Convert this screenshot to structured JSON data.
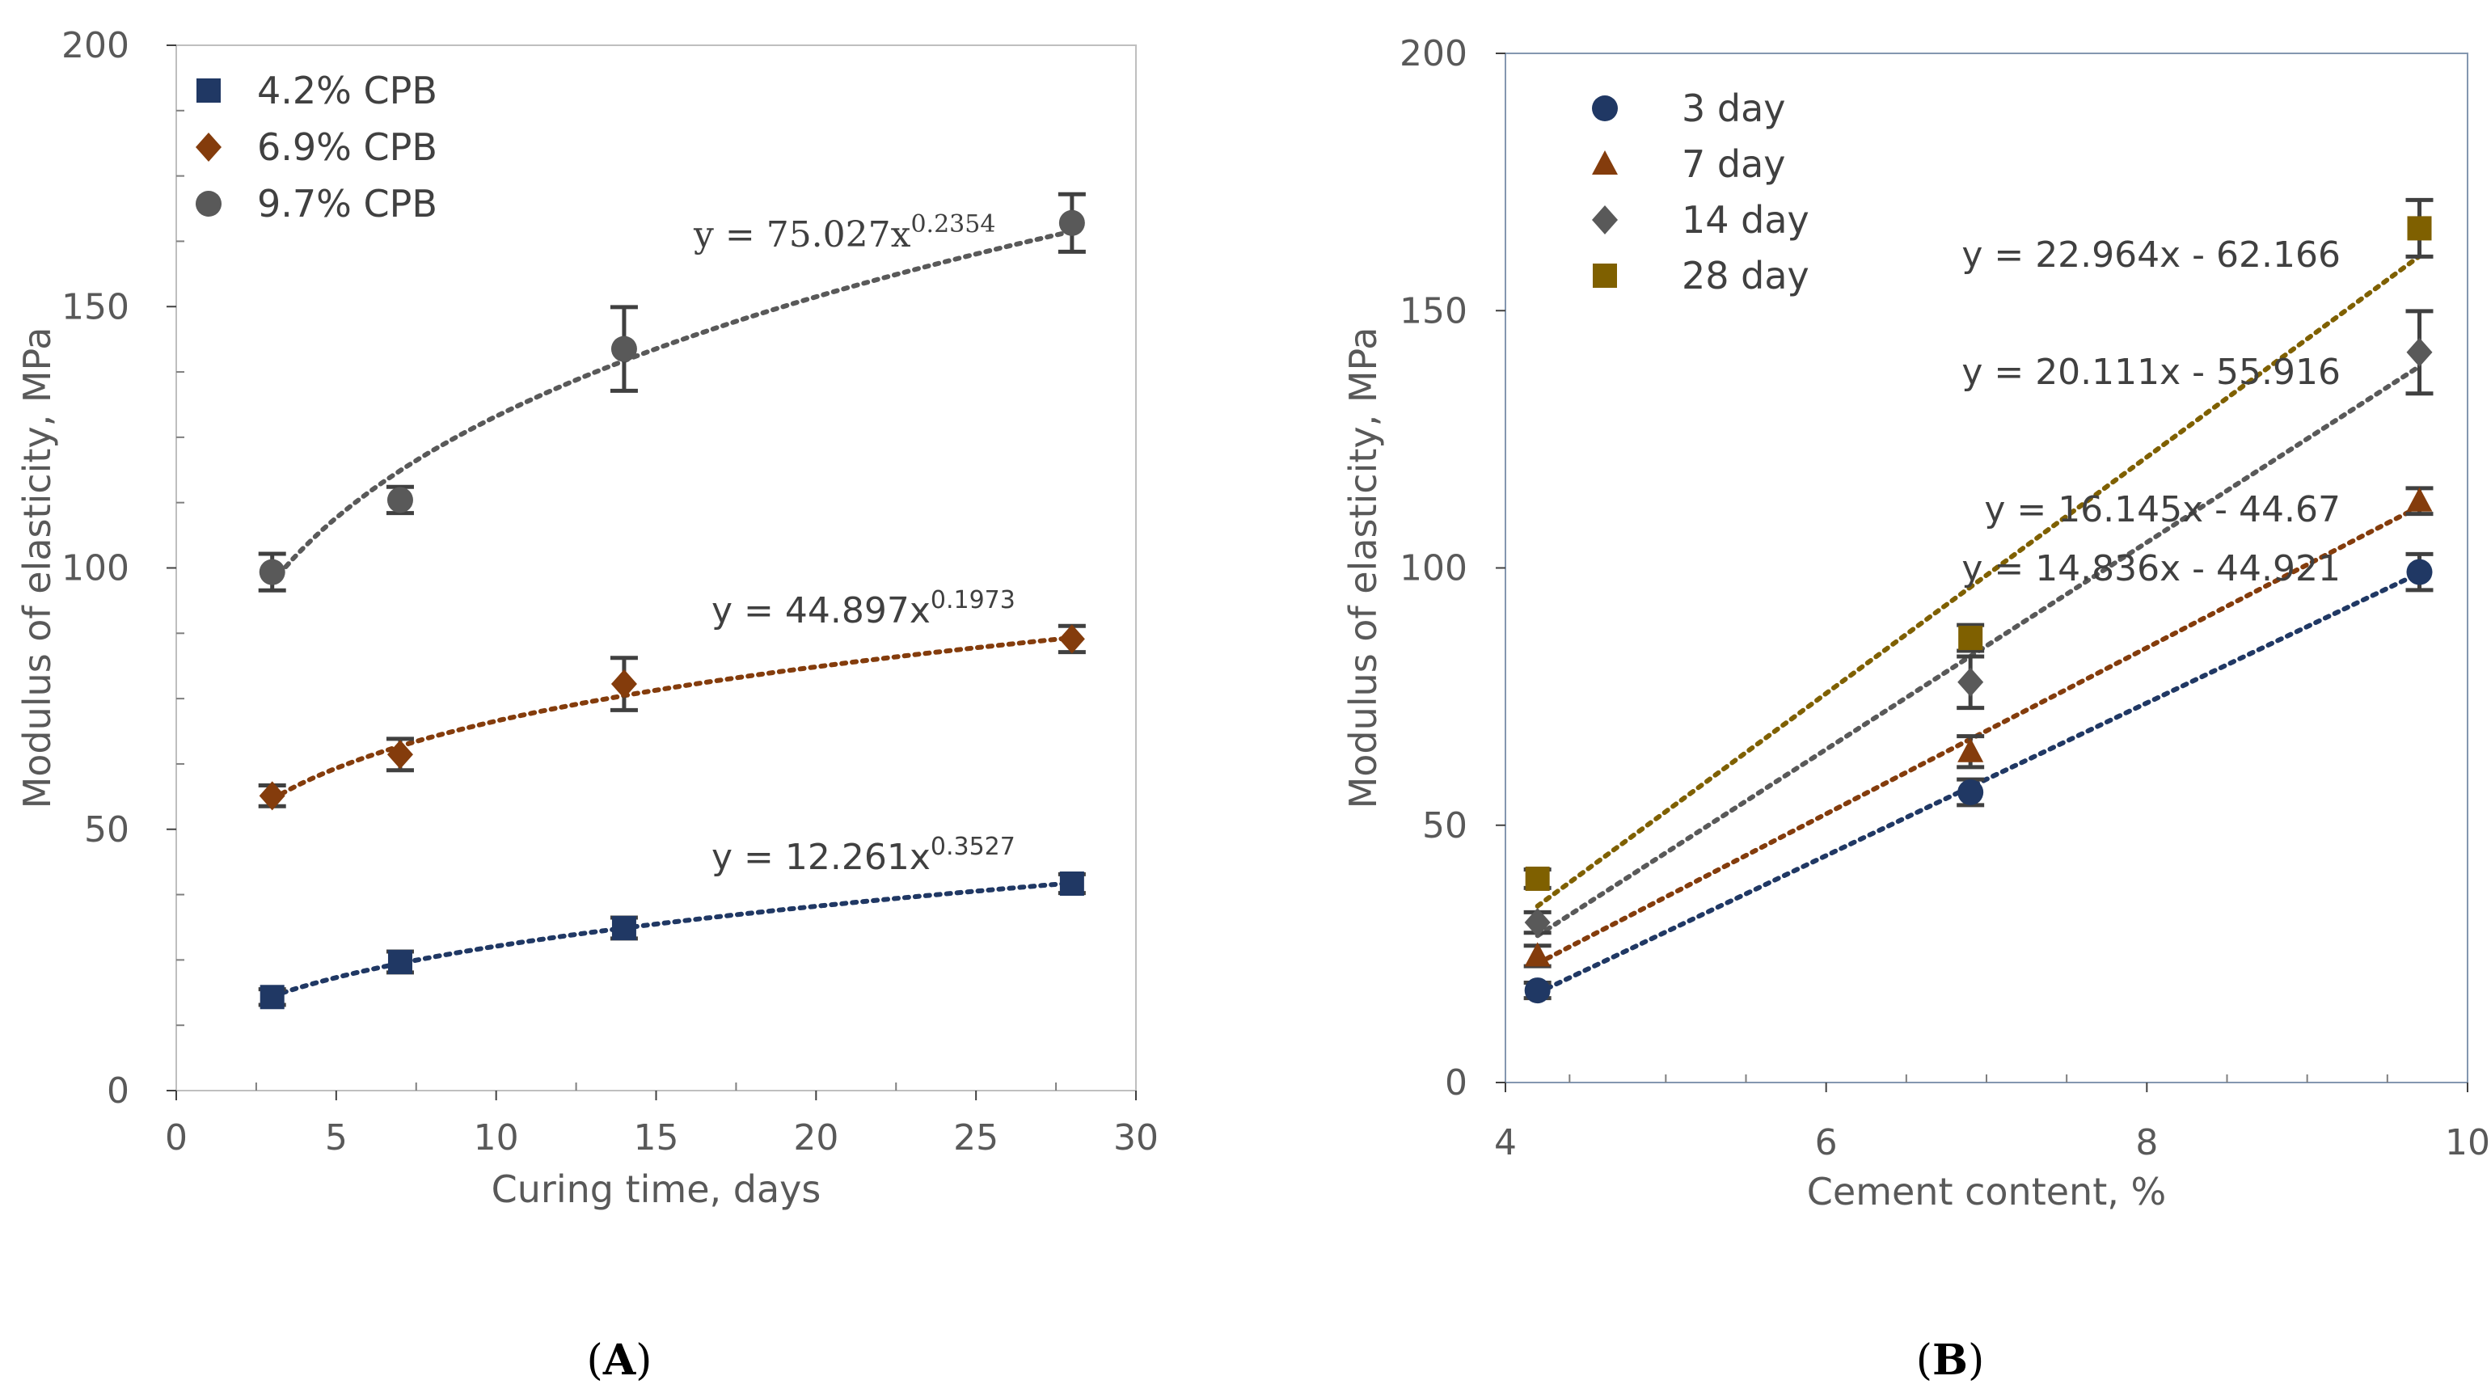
{
  "chart_data": [
    {
      "type": "scatter",
      "panel_label": "A",
      "xlabel": "Curing time, days",
      "ylabel": "Modulus of elasticity, MPa",
      "xlim": [
        0,
        30
      ],
      "ylim": [
        0,
        200
      ],
      "xticks": [
        "0",
        "5",
        "10",
        "15",
        "20",
        "25",
        "30"
      ],
      "yticks": [
        "0",
        "50",
        "100",
        "150",
        "200"
      ],
      "x": [
        3,
        7,
        14,
        28
      ],
      "series": [
        {
          "name": "4.2% CPB",
          "color": "#203864",
          "marker": "square",
          "values": [
            17.9,
            24.6,
            31.1,
            39.6
          ],
          "errors": [
            1.5,
            2,
            2,
            1.8
          ],
          "trend": {
            "type": "power",
            "a": 12.261,
            "b": 0.3527
          },
          "equation": {
            "prefix": "y = 12.261x",
            "exp": "0.3527"
          }
        },
        {
          "name": "6.9% CPB",
          "color": "#843C0C",
          "marker": "diamond",
          "values": [
            56.4,
            64.3,
            77.8,
            86.4
          ],
          "errors": [
            2,
            3,
            5,
            2.5
          ],
          "trend": {
            "type": "power",
            "a": 44.897,
            "b": 0.1973
          },
          "equation": {
            "prefix": "y = 44.897x",
            "exp": "0.1973"
          }
        },
        {
          "name": "9.7% CPB",
          "color": "#595959",
          "marker": "circle",
          "values": [
            99.2,
            113,
            141.9,
            166
          ],
          "errors": [
            3.5,
            2.5,
            8,
            5.5
          ],
          "trend": {
            "type": "power",
            "a": 75.027,
            "b": 0.2354
          },
          "equation": {
            "prefix": "y = 75.027x",
            "exp": "0.2354"
          }
        }
      ]
    },
    {
      "type": "scatter",
      "panel_label": "B",
      "xlabel": "Cement content, %",
      "ylabel": "Modulus of elasticity, MPa",
      "xlim": [
        4,
        10
      ],
      "ylim": [
        0,
        200
      ],
      "xticks": [
        "4",
        "6",
        "8",
        "10"
      ],
      "yticks": [
        "0",
        "50",
        "100",
        "150",
        "200"
      ],
      "x": [
        4.2,
        6.9,
        9.7
      ],
      "series": [
        {
          "name": "3 day",
          "color": "#203864",
          "marker": "circle",
          "values": [
            17.9,
            56.4,
            99.2
          ],
          "errors": [
            1.5,
            2.5,
            3.5
          ],
          "trend": {
            "type": "linear",
            "m": 14.836,
            "c": -44.921
          },
          "equation": "y = 14.836x - 44.921"
        },
        {
          "name": "7 day",
          "color": "#843C0C",
          "marker": "triangle",
          "values": [
            24.6,
            64.3,
            113
          ],
          "errors": [
            2,
            3,
            2.5
          ],
          "trend": {
            "type": "linear",
            "m": 16.145,
            "c": -44.67
          },
          "equation": "y = 16.145x - 44.67"
        },
        {
          "name": "14 day",
          "color": "#595959",
          "marker": "diamond",
          "values": [
            31.1,
            77.8,
            141.9
          ],
          "errors": [
            2,
            5,
            8
          ],
          "trend": {
            "type": "linear",
            "m": 20.111,
            "c": -55.916
          },
          "equation": "y = 20.111x - 55.916"
        },
        {
          "name": "28 day",
          "color": "#7F6000",
          "marker": "square",
          "values": [
            39.6,
            86.4,
            166
          ],
          "errors": [
            1.8,
            2.5,
            5.5
          ],
          "trend": {
            "type": "linear",
            "m": 22.964,
            "c": -62.166
          },
          "equation": "y = 22.964x - 62.166"
        }
      ]
    }
  ]
}
